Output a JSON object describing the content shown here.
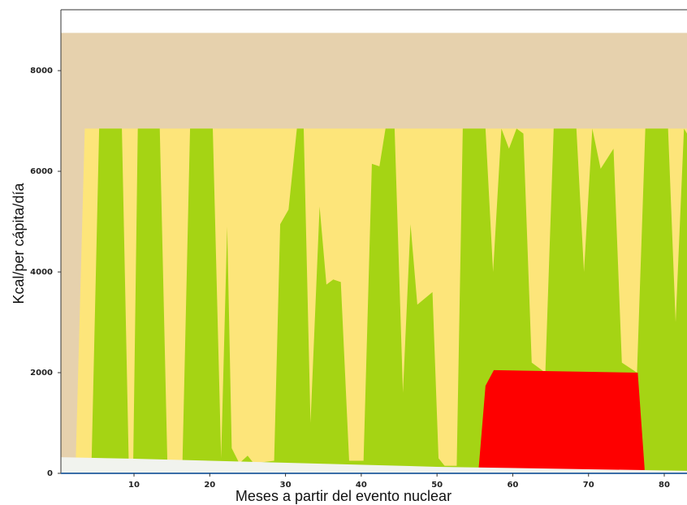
{
  "chart_data": {
    "type": "area",
    "x_label": "Meses a partir del evento nuclear",
    "y_label": "Kcal/per cápita/día",
    "xlim": [
      0.35,
      83
    ],
    "ylim": [
      0,
      9210
    ],
    "xticks": [
      10,
      20,
      30,
      40,
      50,
      60,
      70,
      80
    ],
    "yticks": [
      0,
      2000,
      4000,
      6000,
      8000
    ],
    "series": [
      {
        "color": "#e6d1ad",
        "x": [
          0.35,
          83
        ],
        "values": [
          8750,
          8750
        ]
      },
      {
        "color": "#fde57a",
        "x": [
          2.3,
          3.5,
          83
        ],
        "values": [
          200,
          6850,
          6850
        ]
      },
      {
        "color": "#a5d414",
        "x": [
          4.4,
          5.4,
          8.4,
          9.3,
          9.9,
          10.5,
          13.4,
          14.4,
          16.4,
          17.4,
          20.4,
          21.5,
          22.3,
          22.9,
          23.9,
          25,
          25.8,
          28.5,
          29.3,
          30.4,
          31.5,
          32.4,
          33.3,
          34.5,
          35.4,
          36.3,
          37.3,
          38.4,
          40.3,
          41.4,
          42.4,
          43.2,
          44.4,
          45.5,
          46.5,
          47.4,
          49.4,
          50.2,
          51,
          52.6,
          53.4,
          56.4,
          57.4,
          58.5,
          59.5,
          60.5,
          61.4,
          62.5,
          64.3,
          65.4,
          68.4,
          69.4,
          70.5,
          71.6,
          73.3,
          74.4,
          76.4,
          77.5,
          80.5,
          81.5,
          82.6,
          83
        ],
        "values": [
          250,
          6850,
          6850,
          250,
          250,
          6850,
          6850,
          250,
          250,
          6850,
          6850,
          300,
          4900,
          500,
          200,
          350,
          200,
          250,
          4950,
          5240,
          6850,
          6850,
          1000,
          5300,
          3750,
          3850,
          3800,
          250,
          250,
          6150,
          6100,
          6850,
          6850,
          1600,
          4950,
          3350,
          3600,
          300,
          150,
          150,
          6850,
          6850,
          4000,
          6850,
          6450,
          6850,
          6750,
          2200,
          2000,
          6850,
          6850,
          4000,
          6850,
          6050,
          6450,
          2200,
          2000,
          6850,
          6850,
          3000,
          6850,
          6750
        ]
      },
      {
        "color": "#fe0000",
        "x": [
          55.5,
          56.4,
          57.5,
          76.5,
          77.4
        ],
        "values": [
          100,
          1740,
          2050,
          2000,
          100
        ]
      },
      {
        "color": "#f1f3ee",
        "x": [
          0.35,
          10,
          50,
          83
        ],
        "values": [
          320,
          290,
          130,
          50
        ]
      }
    ]
  }
}
